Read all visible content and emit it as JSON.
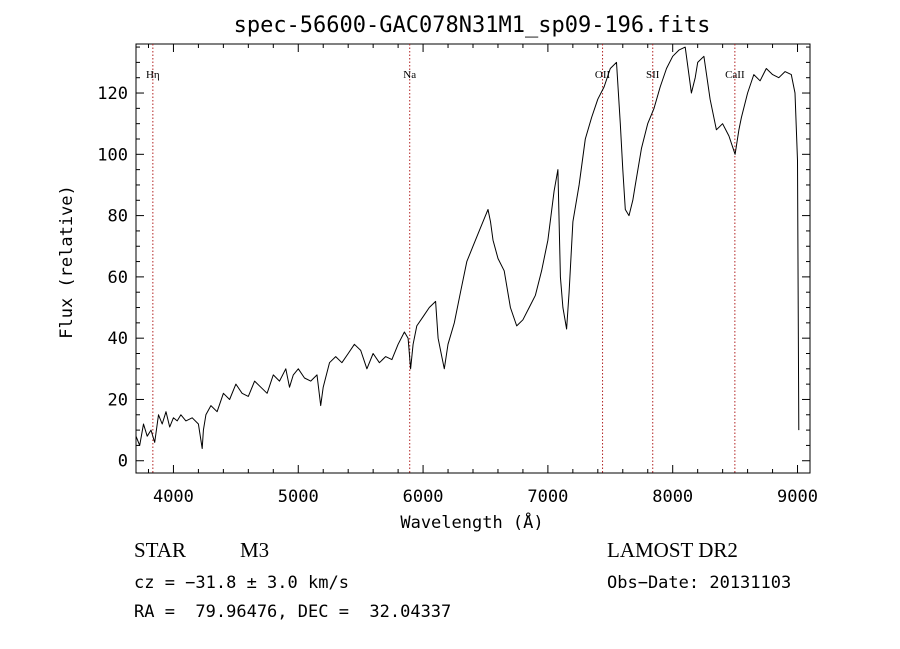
{
  "chart_data": {
    "type": "line",
    "title": "spec-56600-GAC078N31M1_sp09-196.fits",
    "xlabel": "Wavelength (Å)",
    "ylabel": "Flux (relative)",
    "xlim": [
      3700,
      9100
    ],
    "ylim": [
      -4,
      136
    ],
    "xticks": [
      4000,
      5000,
      6000,
      7000,
      8000,
      9000
    ],
    "yticks": [
      0,
      20,
      40,
      60,
      80,
      100,
      120
    ],
    "grid": false,
    "series": [
      {
        "x": [
          3700,
          3730,
          3760,
          3790,
          3820,
          3850,
          3880,
          3910,
          3940,
          3970,
          4000,
          4030,
          4060,
          4100,
          4150,
          4200,
          4230,
          4240,
          4260,
          4300,
          4350,
          4400,
          4450,
          4500,
          4550,
          4600,
          4650,
          4700,
          4750,
          4800,
          4850,
          4900,
          4930,
          4960,
          5000,
          5050,
          5100,
          5150,
          5180,
          5200,
          5250,
          5300,
          5350,
          5400,
          5450,
          5500,
          5550,
          5600,
          5650,
          5700,
          5750,
          5800,
          5850,
          5880,
          5900,
          5920,
          5950,
          6000,
          6050,
          6100,
          6120,
          6150,
          6170,
          6200,
          6250,
          6300,
          6350,
          6400,
          6450,
          6500,
          6520,
          6540,
          6560,
          6600,
          6650,
          6700,
          6750,
          6800,
          6850,
          6900,
          6950,
          7000,
          7050,
          7080,
          7100,
          7120,
          7150,
          7170,
          7200,
          7250,
          7300,
          7350,
          7400,
          7450,
          7500,
          7550,
          7580,
          7600,
          7620,
          7650,
          7680,
          7700,
          7750,
          7800,
          7850,
          7900,
          7950,
          8000,
          8050,
          8100,
          8150,
          8180,
          8200,
          8250,
          8300,
          8350,
          8400,
          8450,
          8500,
          8530,
          8550,
          8600,
          8650,
          8700,
          8750,
          8800,
          8850,
          8900,
          8950,
          8980,
          9000,
          9010
        ],
        "y": [
          8,
          5,
          12,
          8,
          10,
          6,
          15,
          12,
          16,
          11,
          14,
          13,
          15,
          13,
          14,
          12,
          4,
          10,
          15,
          18,
          16,
          22,
          20,
          25,
          22,
          21,
          26,
          24,
          22,
          28,
          26,
          30,
          24,
          28,
          30,
          27,
          26,
          28,
          18,
          24,
          32,
          34,
          32,
          35,
          38,
          36,
          30,
          35,
          32,
          34,
          33,
          38,
          42,
          40,
          30,
          38,
          44,
          47,
          50,
          52,
          40,
          34,
          30,
          38,
          45,
          55,
          65,
          70,
          75,
          80,
          82,
          78,
          72,
          66,
          62,
          50,
          44,
          46,
          50,
          54,
          62,
          72,
          88,
          95,
          60,
          50,
          43,
          55,
          78,
          90,
          105,
          112,
          118,
          122,
          128,
          130,
          110,
          95,
          82,
          80,
          85,
          90,
          102,
          110,
          115,
          122,
          128,
          132,
          134,
          135,
          120,
          125,
          130,
          132,
          118,
          108,
          110,
          106,
          100,
          108,
          112,
          120,
          126,
          124,
          128,
          126,
          125,
          127,
          126,
          120,
          98,
          10
        ]
      }
    ],
    "line_annotations": [
      {
        "label": "Hη",
        "x": 3835
      },
      {
        "label": "Na",
        "x": 5893
      },
      {
        "label": "OII",
        "x": 7438
      },
      {
        "label": "SII",
        "x": 7840
      },
      {
        "label": "CaII",
        "x": 8498
      }
    ]
  },
  "info": {
    "class_label": "STAR",
    "subclass": "M3",
    "survey": "LAMOST DR2",
    "velocity": "cz = −31.8 ± 3.0 km/s",
    "obs_date": "Obs−Date: 20131103",
    "coords": "RA =  79.96476, DEC =  32.04337"
  },
  "colors": {
    "spectrum": "#000000",
    "line_markers": "#b22222",
    "axes": "#000000"
  }
}
